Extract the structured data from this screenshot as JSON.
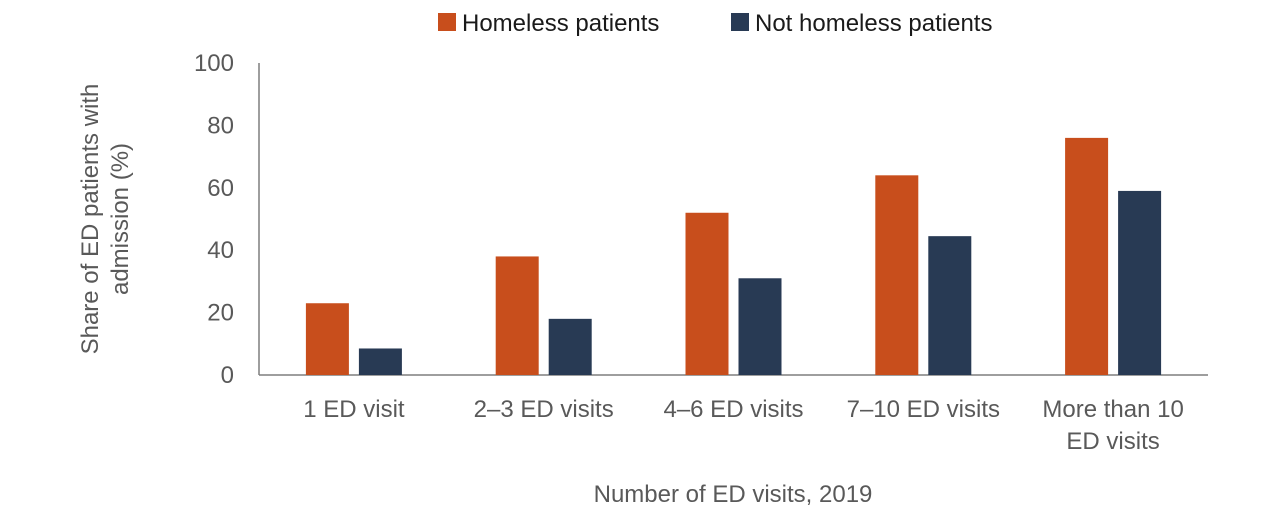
{
  "chart_data": {
    "type": "bar",
    "title": "",
    "xlabel": "Number of ED visits, 2019",
    "ylabel": "Share of ED patients with admission (%)",
    "ylabel_lines": [
      "Share of ED patients with",
      "admission (%)"
    ],
    "ylim": [
      0,
      100
    ],
    "yticks": [
      0,
      20,
      40,
      60,
      80,
      100
    ],
    "grid": false,
    "legend_position": "top-center",
    "categories": [
      [
        "1 ED visit"
      ],
      [
        "2–3 ED visits"
      ],
      [
        "4–6 ED visits"
      ],
      [
        "7–10 ED visits"
      ],
      [
        "More than 10",
        "ED visits"
      ]
    ],
    "series": [
      {
        "name": "Homeless patients",
        "color": "#c84e1c",
        "values": [
          23,
          38,
          52,
          64,
          76
        ]
      },
      {
        "name": "Not homeless patients",
        "color": "#283a54",
        "values": [
          8.5,
          18,
          31,
          44.5,
          59
        ]
      }
    ]
  }
}
